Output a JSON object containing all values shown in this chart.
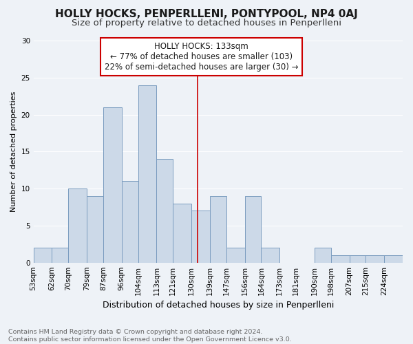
{
  "title": "HOLLY HOCKS, PENPERLLENI, PONTYPOOL, NP4 0AJ",
  "subtitle": "Size of property relative to detached houses in Penperlleni",
  "xlabel": "Distribution of detached houses by size in Penperlleni",
  "ylabel": "Number of detached properties",
  "bar_color": "#ccd9e8",
  "bar_edgecolor": "#7a9cbf",
  "background_color": "#eef2f7",
  "grid_color": "#ffffff",
  "bin_labels": [
    "53sqm",
    "62sqm",
    "70sqm",
    "79sqm",
    "87sqm",
    "96sqm",
    "104sqm",
    "113sqm",
    "121sqm",
    "130sqm",
    "139sqm",
    "147sqm",
    "156sqm",
    "164sqm",
    "173sqm",
    "181sqm",
    "190sqm",
    "198sqm",
    "207sqm",
    "215sqm",
    "224sqm"
  ],
  "bin_edges": [
    53,
    62,
    70,
    79,
    87,
    96,
    104,
    113,
    121,
    130,
    139,
    147,
    156,
    164,
    173,
    181,
    190,
    198,
    207,
    215,
    224
  ],
  "bin_widths": [
    9,
    8,
    9,
    8,
    9,
    8,
    9,
    8,
    9,
    9,
    8,
    9,
    8,
    9,
    8,
    9,
    8,
    9,
    8,
    9,
    9
  ],
  "bar_heights": [
    2,
    2,
    10,
    9,
    21,
    11,
    24,
    14,
    8,
    7,
    9,
    2,
    9,
    2,
    0,
    0,
    2,
    1,
    1,
    1,
    1
  ],
  "property_value": 133,
  "annotation_title": "HOLLY HOCKS: 133sqm",
  "annotation_line1": "← 77% of detached houses are smaller (103)",
  "annotation_line2": "22% of semi-detached houses are larger (30) →",
  "vline_color": "#cc0000",
  "annotation_box_edgecolor": "#cc0000",
  "footnote1": "Contains HM Land Registry data © Crown copyright and database right 2024.",
  "footnote2": "Contains public sector information licensed under the Open Government Licence v3.0.",
  "ylim": [
    0,
    30
  ],
  "yticks": [
    0,
    5,
    10,
    15,
    20,
    25,
    30
  ],
  "title_fontsize": 11,
  "subtitle_fontsize": 9.5,
  "xlabel_fontsize": 9,
  "ylabel_fontsize": 8,
  "tick_fontsize": 7.5,
  "annotation_fontsize": 8.5,
  "footnote_fontsize": 6.8
}
